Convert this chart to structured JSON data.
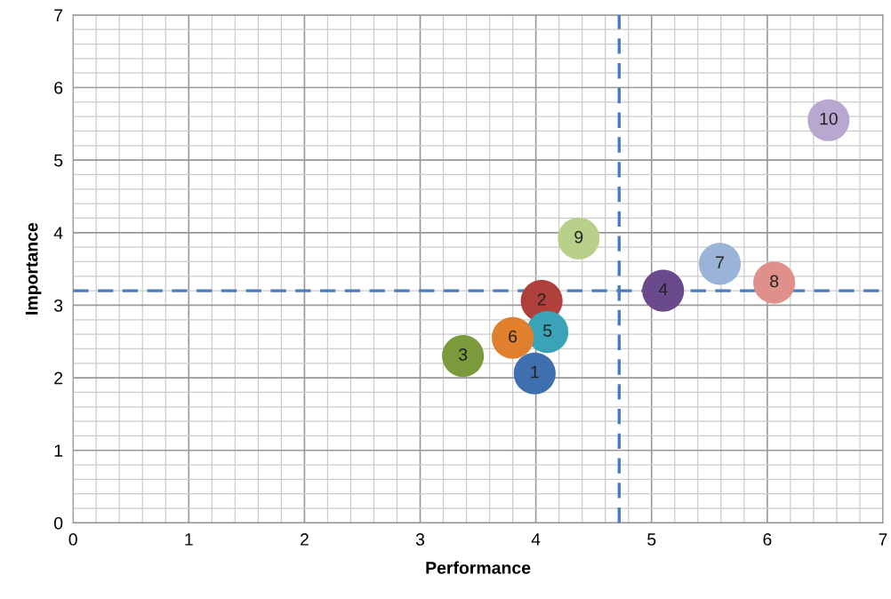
{
  "chart_data": {
    "type": "scatter",
    "xlabel": "Performance",
    "ylabel": "Importance",
    "x": [
      3.99,
      4.05,
      3.37,
      5.1,
      4.1,
      3.8,
      5.59,
      6.06,
      4.37,
      6.53
    ],
    "values": [
      2.06,
      3.06,
      2.3,
      3.2,
      2.63,
      2.55,
      3.57,
      3.31,
      3.92,
      5.55
    ],
    "colors": [
      "#3f6fae",
      "#b0403c",
      "#7a9a3c",
      "#6b4a8c",
      "#3aa3b8",
      "#e0802e",
      "#9ab4d8",
      "#e0908a",
      "#b8d08a",
      "#b8a8d0"
    ],
    "annotations": [
      {
        "text": "1",
        "x": 3.99,
        "y": 2.06
      },
      {
        "text": "2",
        "x": 4.05,
        "y": 3.06
      },
      {
        "text": "3",
        "x": 3.37,
        "y": 2.3
      },
      {
        "text": "4",
        "x": 5.1,
        "y": 3.2
      },
      {
        "text": "5",
        "x": 4.1,
        "y": 2.63
      },
      {
        "text": "6",
        "x": 3.8,
        "y": 2.55
      },
      {
        "text": "7",
        "x": 5.59,
        "y": 3.57
      },
      {
        "text": "8",
        "x": 6.06,
        "y": 3.31
      },
      {
        "text": "9",
        "x": 4.37,
        "y": 3.92
      },
      {
        "text": "10",
        "x": 6.53,
        "y": 5.55
      }
    ],
    "xlim": [
      0,
      7
    ],
    "ylim": [
      0,
      7
    ],
    "xticks": [
      0,
      1,
      2,
      3,
      4,
      5,
      6,
      7
    ],
    "yticks": [
      0,
      1,
      2,
      3,
      4,
      5,
      6,
      7
    ],
    "ref_lines": [
      {
        "axis": "x",
        "value": 4.72,
        "color": "#4a7ebf",
        "line_style": "dashed"
      },
      {
        "axis": "y",
        "value": 3.2,
        "color": "#4a7ebf",
        "line_style": "dashed"
      }
    ],
    "grid": true,
    "marker": "circle"
  }
}
